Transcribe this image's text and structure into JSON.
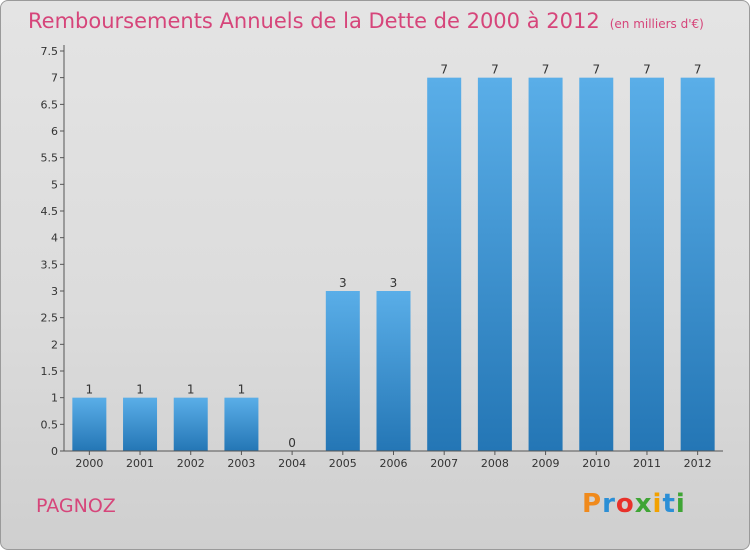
{
  "header": {
    "title": "Remboursements Annuels de la Dette de 2000 à 2012",
    "subtitle": "(en milliers d'€)"
  },
  "footer": {
    "commune": "PAGNOZ",
    "logo_letters": [
      "P",
      "r",
      "o",
      "x",
      "i",
      "t",
      "i"
    ]
  },
  "chart_data": {
    "type": "bar",
    "categories": [
      "2000",
      "2001",
      "2002",
      "2003",
      "2004",
      "2005",
      "2006",
      "2007",
      "2008",
      "2009",
      "2010",
      "2011",
      "2012"
    ],
    "values": [
      1,
      1,
      1,
      1,
      0,
      3,
      3,
      7,
      7,
      7,
      7,
      7,
      7
    ],
    "data_labels": [
      "1",
      "1",
      "1",
      "1",
      "0",
      "3",
      "3",
      "7",
      "7",
      "7",
      "7",
      "7",
      "7"
    ],
    "y_ticks": [
      0,
      0.5,
      1,
      1.5,
      2,
      2.5,
      3,
      3.5,
      4,
      4.5,
      5,
      5.5,
      6,
      6.5,
      7,
      7.5
    ],
    "y_tick_labels": [
      "0",
      "0.5",
      "1",
      "1.5",
      "2",
      "2.5",
      "3",
      "3.5",
      "4",
      "4.5",
      "5",
      "5.5",
      "6",
      "6.5",
      "7",
      "7.5"
    ],
    "ylim": [
      0,
      7.5
    ],
    "grid": false,
    "colors": {
      "bar_light": "#5aaee8",
      "bar_dark": "#2476b5",
      "title": "#d6457a"
    }
  }
}
